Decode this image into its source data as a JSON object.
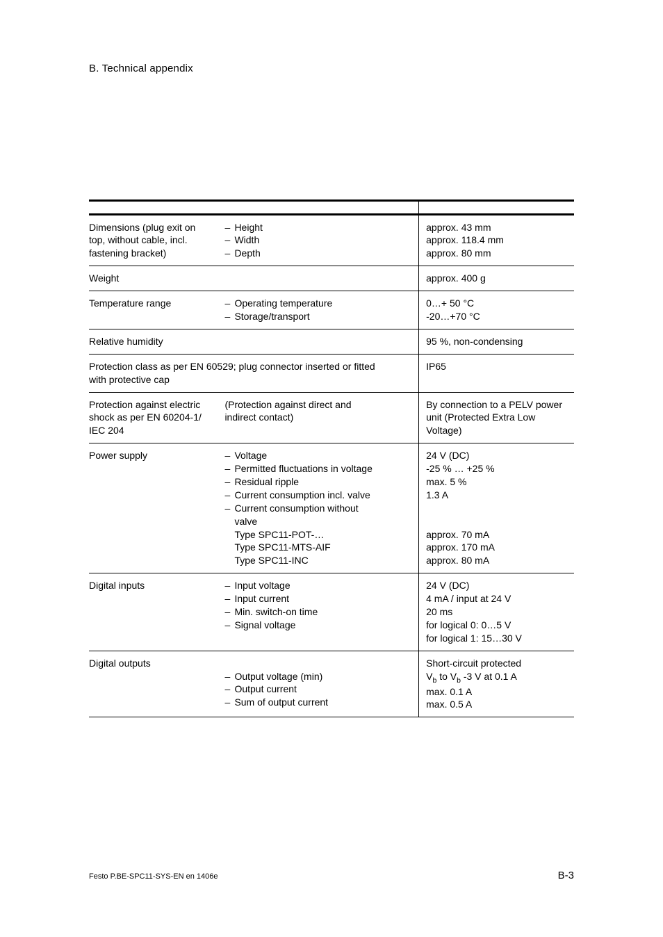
{
  "header": "B.   Technical appendix",
  "footer_left": "Festo P.BE-SPC11-SYS-EN  en 1406e",
  "footer_right": "B-3",
  "rows": [
    {
      "c1_lines": [
        "Dimensions (plug exit on",
        "top, without cable, incl.",
        "fastening bracket)"
      ],
      "c2_dash_lines": [
        "Height",
        "Width",
        "Depth"
      ],
      "c3_lines": [
        "approx. 43 mm",
        "approx. 118.4 mm",
        "approx. 80 mm"
      ]
    },
    {
      "c1_lines": [
        "Weight"
      ],
      "c2_dash_lines": [],
      "c3_lines": [
        "approx. 400 g"
      ],
      "span12": true
    },
    {
      "c1_lines": [
        "Temperature range"
      ],
      "c2_dash_lines": [
        "Operating temperature",
        "Storage/transport"
      ],
      "c3_lines": [
        "0…+ 50 °C",
        "-20…+70 °C"
      ]
    },
    {
      "c1_lines": [
        "Relative humidity"
      ],
      "c2_dash_lines": [],
      "c3_lines": [
        "95 %, non-condensing"
      ],
      "span12": true
    },
    {
      "c1_lines": [
        "Protection class as per EN 60529; plug connector inserted or fitted",
        "with protective cap"
      ],
      "c2_dash_lines": [],
      "c3_lines": [
        "IP65"
      ],
      "span12": true
    },
    {
      "c1_lines": [
        "Protection against electric",
        "shock as per EN 60204-1/",
        "IEC 204"
      ],
      "c2_plain_lines": [
        "(Protection against direct and",
        "indirect contact)"
      ],
      "c3_lines": [
        "By connection to a PELV power",
        "unit (Protected Extra Low",
        "Voltage)"
      ]
    },
    {
      "c1_lines": [
        "Power supply"
      ],
      "c2_dash_lines": [
        "Voltage",
        "Permitted fluctuations in voltage",
        "Residual ripple",
        "Current consumption incl. valve",
        "Current consumption without"
      ],
      "c2_extra_indent": [
        "valve",
        "Type SPC11-POT-…",
        "Type SPC11-MTS-AIF",
        "Type SPC11-INC"
      ],
      "c3_lines": [
        "24 V (DC)",
        "-25 % … +25 %",
        "max. 5 %",
        "1.3 A",
        "",
        "",
        "approx. 70 mA",
        "approx. 170 mA",
        "approx. 80 mA"
      ]
    },
    {
      "c1_lines": [
        "Digital inputs"
      ],
      "c2_dash_lines": [
        "Input voltage",
        "Input current",
        "Min. switch-on time",
        "Signal voltage"
      ],
      "c3_lines": [
        "24 V (DC)",
        "4 mA / input at 24 V",
        "20 ms",
        "for logical 0:    0…5 V",
        "for logical 1:    15…30 V"
      ]
    },
    {
      "c1_lines": [
        "Digital outputs"
      ],
      "c2_lead_blank": true,
      "c2_dash_lines": [
        "Output voltage (min)",
        "Output current",
        "Sum of output current"
      ],
      "c3_html_lines": [
        "Short-circuit protected",
        "V<span class=\"sub\">b</span> to V<span class=\"sub\">b</span> -3 V at 0.1 A",
        "max. 0.1 A",
        "max. 0.5 A"
      ]
    }
  ]
}
